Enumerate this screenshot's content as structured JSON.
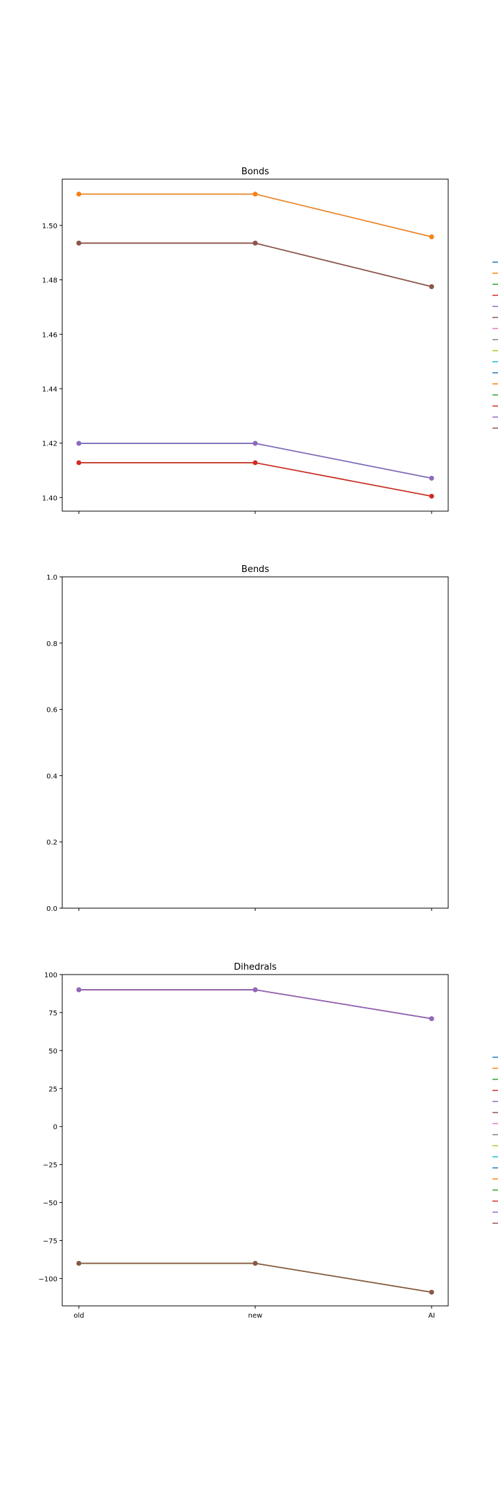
{
  "chart_data": [
    {
      "type": "line",
      "title": "Bonds",
      "xlabel": "",
      "ylabel": "",
      "categories": [
        "old",
        "new",
        "AI"
      ],
      "show_xtick_labels": false,
      "ylim": [
        1.395,
        1.517
      ],
      "yticks": [
        1.4,
        1.42,
        1.44,
        1.46,
        1.48,
        1.5
      ],
      "ytick_labels": [
        "1.40",
        "1.42",
        "1.44",
        "1.46",
        "1.48",
        "1.50"
      ],
      "grid": false,
      "legend": "right-outside",
      "series": [
        {
          "color": "#1f77b4",
          "values": [
            1.5115,
            1.5115,
            1.4958
          ]
        },
        {
          "color": "#ff7f0e",
          "values": [
            1.5115,
            1.5115,
            1.4958
          ]
        },
        {
          "color": "#2ca02c",
          "values": [
            1.4935,
            1.4935,
            1.4775
          ]
        },
        {
          "color": "#d62728",
          "values": [
            1.4935,
            1.4935,
            1.4775
          ]
        },
        {
          "color": "#9467bd",
          "values": [
            1.4935,
            1.4935,
            1.4775
          ]
        },
        {
          "color": "#8c564b",
          "values": [
            1.4935,
            1.4935,
            1.4775
          ]
        },
        {
          "color": "#e377c2",
          "values": [
            1.4128,
            1.4128,
            1.4005
          ]
        },
        {
          "color": "#7f7f7f",
          "values": [
            1.4199,
            1.4199,
            1.4071
          ]
        },
        {
          "color": "#bcbd22",
          "values": [
            1.4199,
            1.4199,
            1.4071
          ]
        },
        {
          "color": "#17becf",
          "values": [
            1.4199,
            1.4199,
            1.4071
          ]
        },
        {
          "color": "#1f77b4",
          "values": [
            1.4199,
            1.4199,
            1.4071
          ]
        },
        {
          "color": "#ff7f0e",
          "values": [
            1.4128,
            1.4128,
            1.4005
          ]
        },
        {
          "color": "#2ca02c",
          "values": [
            1.4128,
            1.4128,
            1.4005
          ]
        },
        {
          "color": "#d62728",
          "values": [
            1.4128,
            1.4128,
            1.4005
          ]
        },
        {
          "color": "#9467bd",
          "values": [
            1.4199,
            1.4199,
            1.4071
          ]
        },
        {
          "color": "#8c564b",
          "values": [
            1.4935,
            1.4935,
            1.4775
          ]
        }
      ]
    },
    {
      "type": "line",
      "title": "Bends",
      "xlabel": "",
      "ylabel": "",
      "categories": [
        "old",
        "new",
        "AI"
      ],
      "show_xtick_labels": false,
      "ylim": [
        0.0,
        1.0
      ],
      "yticks": [
        0.0,
        0.2,
        0.4,
        0.6,
        0.8,
        1.0
      ],
      "ytick_labels": [
        "0.0",
        "0.2",
        "0.4",
        "0.6",
        "0.8",
        "1.0"
      ],
      "grid": false,
      "legend": "none",
      "series": []
    },
    {
      "type": "line",
      "title": "Dihedrals",
      "xlabel": "",
      "ylabel": "",
      "categories": [
        "old",
        "new",
        "AI"
      ],
      "show_xtick_labels": true,
      "ylim": [
        -118,
        100
      ],
      "yticks": [
        -100,
        -75,
        -50,
        -25,
        0,
        25,
        50,
        75,
        100
      ],
      "ytick_labels": [
        "−100",
        "−75",
        "−50",
        "−25",
        "0",
        "25",
        "50",
        "75",
        "100"
      ],
      "grid": false,
      "legend": "right-outside",
      "series": [
        {
          "color": "#1f77b4",
          "values": [
            90.0,
            90.0,
            71.0
          ]
        },
        {
          "color": "#ff7f0e",
          "values": [
            -90.0,
            -90.0,
            -109.0
          ]
        },
        {
          "color": "#2ca02c",
          "values": [
            -90.0,
            -90.0,
            -109.0
          ]
        },
        {
          "color": "#d62728",
          "values": [
            90.0,
            90.0,
            71.0
          ]
        },
        {
          "color": "#9467bd",
          "values": [
            90.0,
            90.0,
            71.0
          ]
        },
        {
          "color": "#8c564b",
          "values": [
            -90.0,
            -90.0,
            -109.0
          ]
        },
        {
          "color": "#e377c2",
          "values": [
            90.0,
            90.0,
            71.0
          ]
        },
        {
          "color": "#7f7f7f",
          "values": [
            -90.0,
            -90.0,
            -109.0
          ]
        },
        {
          "color": "#bcbd22",
          "values": [
            -90.0,
            -90.0,
            -109.0
          ]
        },
        {
          "color": "#17becf",
          "values": [
            90.0,
            90.0,
            71.0
          ]
        },
        {
          "color": "#1f77b4",
          "values": [
            90.0,
            90.0,
            71.0
          ]
        },
        {
          "color": "#ff7f0e",
          "values": [
            -90.0,
            -90.0,
            -109.0
          ]
        },
        {
          "color": "#2ca02c",
          "values": [
            -90.0,
            -90.0,
            -109.0
          ]
        },
        {
          "color": "#d62728",
          "values": [
            90.0,
            90.0,
            71.0
          ]
        },
        {
          "color": "#9467bd",
          "values": [
            90.0,
            90.0,
            71.0
          ]
        },
        {
          "color": "#8c564b",
          "values": [
            -90.0,
            -90.0,
            -109.0
          ]
        }
      ]
    }
  ]
}
